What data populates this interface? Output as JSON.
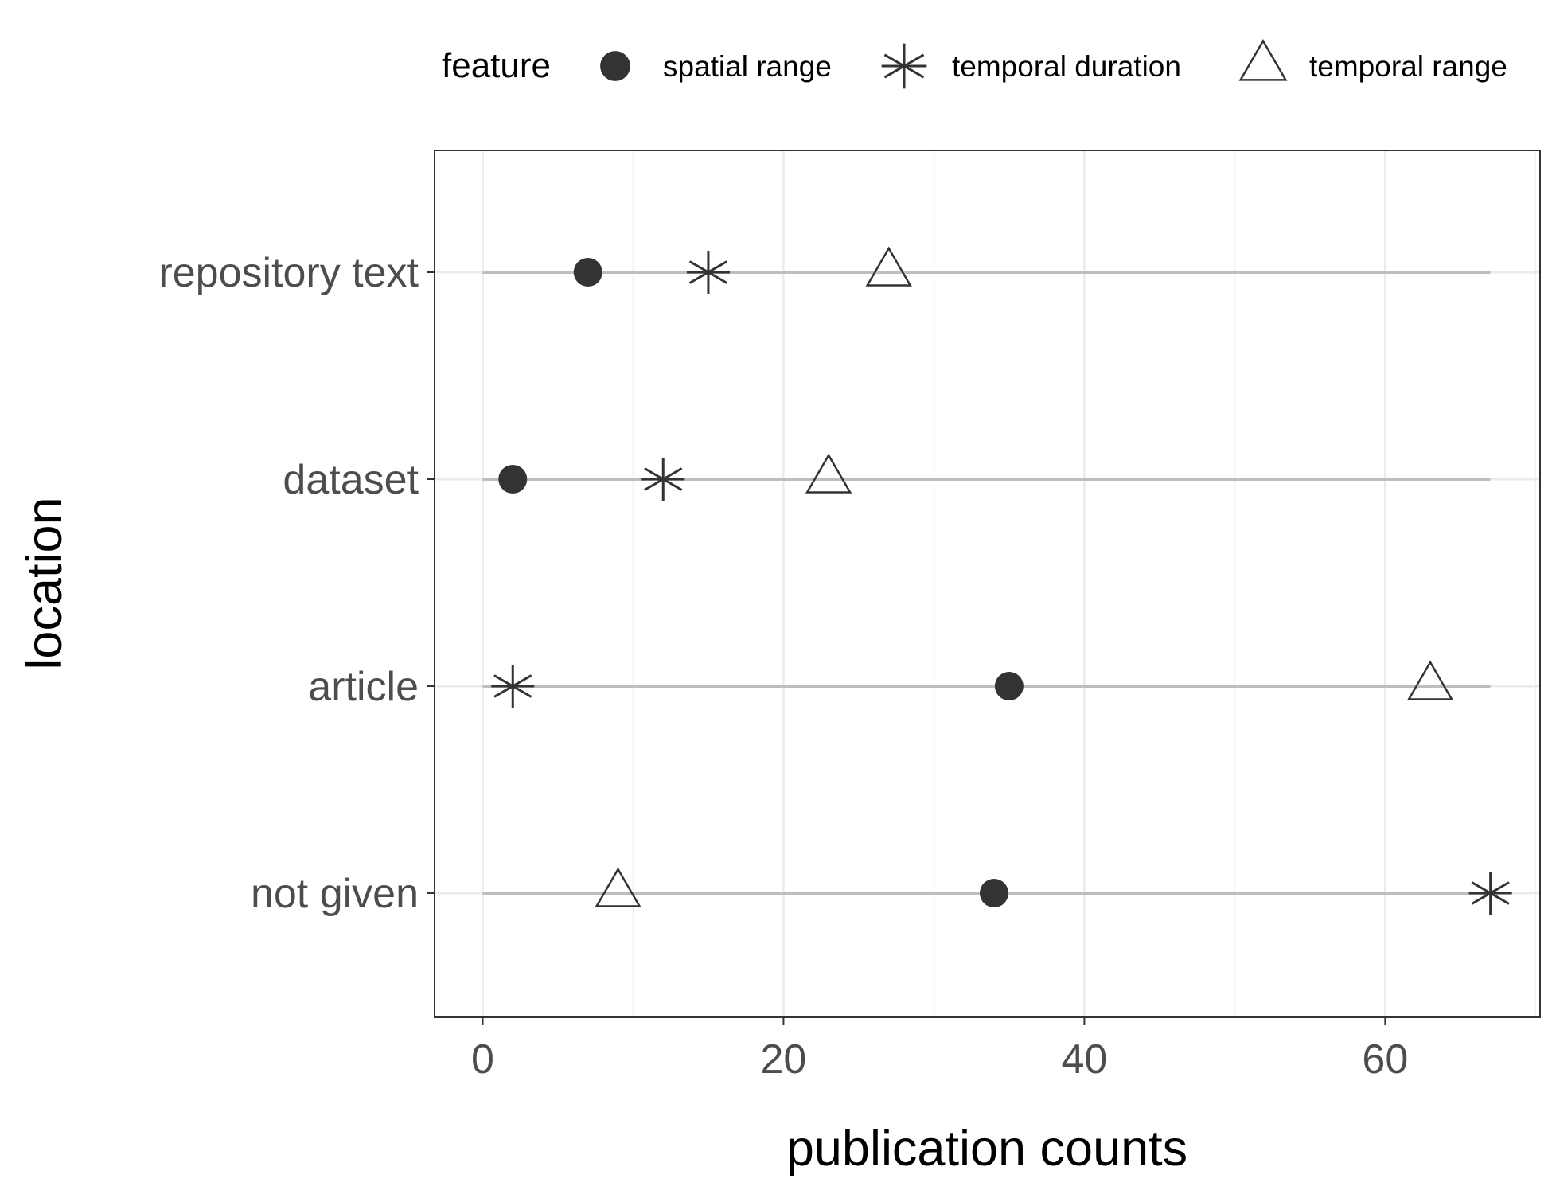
{
  "chart_data": {
    "type": "scatter",
    "title": "",
    "xlabel": "publication counts",
    "ylabel": "location",
    "xlim": [
      -3.2,
      70.3
    ],
    "xticks": [
      0,
      20,
      40,
      60
    ],
    "grid": true,
    "legend": {
      "title": "feature",
      "placement": "top",
      "entries": [
        {
          "name": "spatial range",
          "shape": "filled-circle"
        },
        {
          "name": "temporal duration",
          "shape": "asterisk"
        },
        {
          "name": "temporal range",
          "shape": "open-triangle"
        }
      ]
    },
    "categories": [
      "repository text",
      "dataset",
      "article",
      "not given"
    ],
    "segments": [
      {
        "category": "repository text",
        "range": [
          0,
          67
        ]
      },
      {
        "category": "dataset",
        "range": [
          0,
          67
        ]
      },
      {
        "category": "article",
        "range": [
          0,
          67
        ]
      },
      {
        "category": "not given",
        "range": [
          0,
          67
        ]
      }
    ],
    "series": [
      {
        "name": "spatial range",
        "values": [
          7,
          2,
          35,
          34
        ]
      },
      {
        "name": "temporal duration",
        "values": [
          15,
          12,
          2,
          67
        ]
      },
      {
        "name": "temporal range",
        "values": [
          27,
          23,
          63,
          9
        ]
      }
    ],
    "colors": {
      "point": "#333333",
      "segment": "#bebebe",
      "grid_major": "#ebebeb",
      "grid_minor": "#f2f2f2",
      "panel_border": "#333333",
      "tick_label": "#4d4d4d"
    }
  }
}
